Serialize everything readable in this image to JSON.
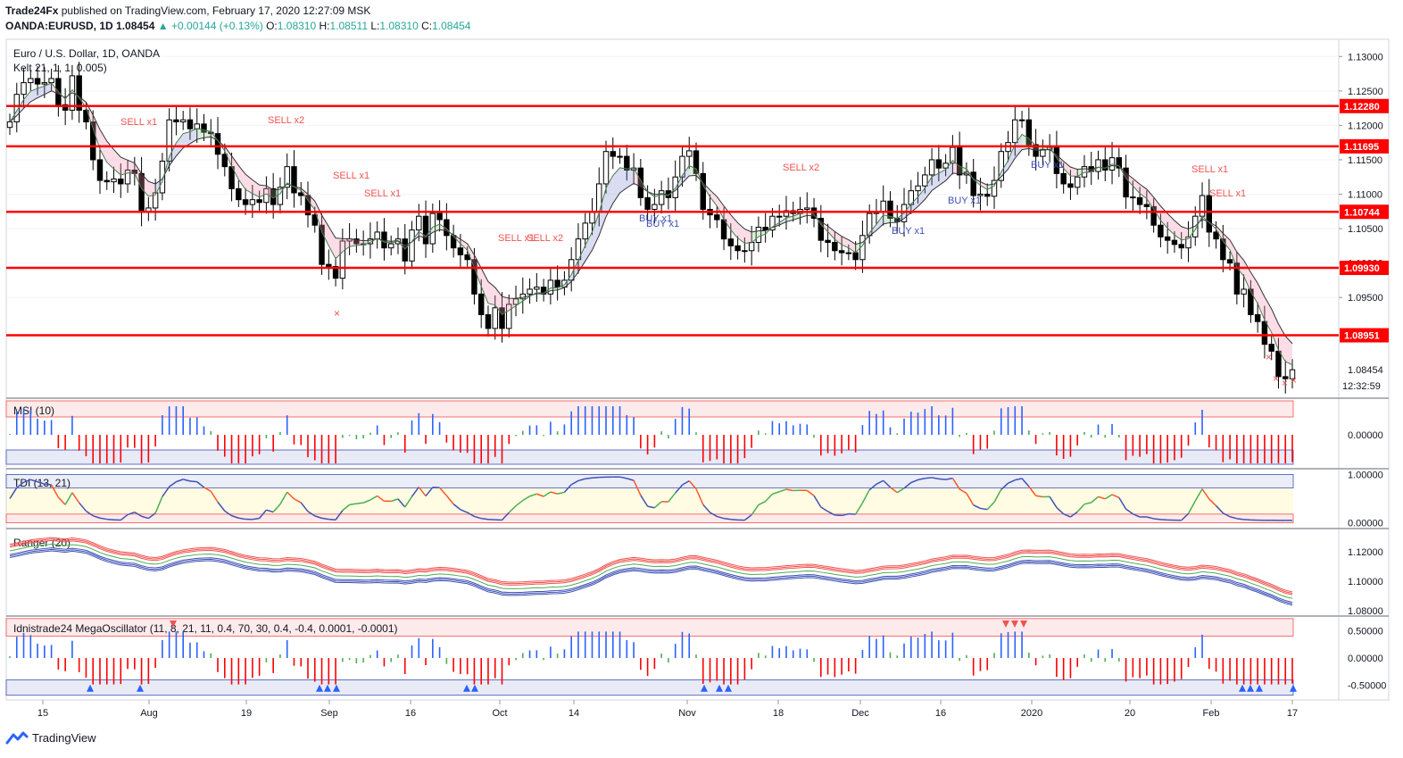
{
  "header": {
    "publisher": "Trade24Fx",
    "published_text": "published on TradingView.com, February 17, 2020 12:27:09 MSK",
    "symbol": "OANDA:EURUSD, 1D",
    "last": "1.08454",
    "change": "+0.00144 (+0.13%)",
    "o_label": "O:",
    "o": "1.08310",
    "h_label": "H:",
    "h": "1.08511",
    "l_label": "L:",
    "l": "1.08310",
    "c_label": "C:",
    "c": "1.08454"
  },
  "legend": {
    "main_title": "Euro / U.S. Dollar, 1D, OANDA",
    "kelt_label": "Kelt 21, 1, 1, 0.005)"
  },
  "colors": {
    "up_candle": "#ffffff",
    "down_candle": "#000000",
    "level_line": "#ff0000",
    "sell_signal": "#ef5350",
    "buy_signal": "#3f51b5",
    "bull_hist": "#2962ff",
    "bear_hist": "#ff0000",
    "neutral_hist": "#4caf50"
  },
  "footer": {
    "brand": "TradingView"
  },
  "chart_data": [
    {
      "type": "candlestick",
      "title": "Euro / U.S. Dollar, 1D, OANDA",
      "ylim": [
        1.0805,
        1.1325
      ],
      "y_ticks": [
        "1.13000",
        "1.12500",
        "1.12000",
        "1.11500",
        "1.11000",
        "1.10500",
        "1.10000",
        "1.09500"
      ],
      "x_tick_labels": [
        "15",
        "Aug",
        "19",
        "Sep",
        "16",
        "Oct",
        "14",
        "Nov",
        "18",
        "Dec",
        "16",
        "2020",
        "20",
        "Feb",
        "17"
      ],
      "levels": [
        {
          "value": 1.1228,
          "label": "1.12280"
        },
        {
          "value": 1.11695,
          "label": "1.11695"
        },
        {
          "value": 1.10744,
          "label": "1.10744"
        },
        {
          "value": 1.0993,
          "label": "1.09930"
        },
        {
          "value": 1.08951,
          "label": "1.08951"
        }
      ],
      "last_price_label": "1.08454",
      "countdown": "12:32:59",
      "close_series": [
        1.1205,
        1.1245,
        1.1262,
        1.1268,
        1.126,
        1.1262,
        1.1268,
        1.123,
        1.1222,
        1.1272,
        1.1222,
        1.1205,
        1.115,
        1.112,
        1.1118,
        1.1122,
        1.1115,
        1.1135,
        1.113,
        1.1075,
        1.108,
        1.1102,
        1.1148,
        1.1208,
        1.1205,
        1.1208,
        1.1195,
        1.1202,
        1.119,
        1.1188,
        1.1158,
        1.114,
        1.1108,
        1.1092,
        1.1085,
        1.1092,
        1.1088,
        1.1108,
        1.1085,
        1.111,
        1.114,
        1.1102,
        1.1098,
        1.107,
        1.1055,
        1.0998,
        1.0995,
        1.0978,
        1.1032,
        1.1035,
        1.1028,
        1.1028,
        1.1035,
        1.1045,
        1.1022,
        1.1028,
        1.1035,
        1.1003,
        1.1048,
        1.1068,
        1.1028,
        1.1072,
        1.1063,
        1.104,
        1.1022,
        1.1012,
        1.1005,
        1.0955,
        1.0925,
        1.0905,
        1.0935,
        1.0905,
        1.094,
        1.0948,
        1.0955,
        1.0962,
        1.0965,
        1.0955,
        1.0975,
        1.0965,
        1.0975,
        1.1005,
        1.1035,
        1.1058,
        1.1075,
        1.1115,
        1.1162,
        1.1155,
        1.1155,
        1.1135,
        1.1138,
        1.1095,
        1.1078,
        1.1085,
        1.1105,
        1.1095,
        1.1125,
        1.1155,
        1.1163,
        1.113,
        1.1078,
        1.107,
        1.1063,
        1.1035,
        1.1025,
        1.1018,
        1.1018,
        1.103,
        1.1052,
        1.1048,
        1.1068,
        1.1068,
        1.1076,
        1.1072,
        1.1078,
        1.108,
        1.1065,
        1.1033,
        1.103,
        1.1018,
        1.1015,
        1.1015,
        1.1005,
        1.104,
        1.1072,
        1.1075,
        1.109,
        1.1065,
        1.106,
        1.1085,
        1.1105,
        1.1112,
        1.1128,
        1.115,
        1.1138,
        1.1145,
        1.1168,
        1.1128,
        1.1132,
        1.1098,
        1.11,
        1.1097,
        1.112,
        1.1162,
        1.1175,
        1.1208,
        1.1208,
        1.1172,
        1.1155,
        1.1165,
        1.1168,
        1.113,
        1.1115,
        1.111,
        1.1125,
        1.114,
        1.1133,
        1.115,
        1.1135,
        1.1153,
        1.1138,
        1.1096,
        1.1095,
        1.1085,
        1.1082,
        1.1055,
        1.1038,
        1.1033,
        1.1027,
        1.1022,
        1.1038,
        1.1068,
        1.1098,
        1.1045,
        1.1035,
        1.1005,
        1.1,
        1.0955,
        1.0962,
        1.0925,
        1.0915,
        1.0882,
        1.0872,
        1.0835,
        1.0832,
        1.0845
      ]
    },
    {
      "type": "bar",
      "title": "MSI (10)",
      "y_ticks": [
        "0.00000"
      ],
      "ylim": [
        -1,
        1
      ]
    },
    {
      "type": "line",
      "title": "TDI (13, 21)",
      "y_ticks": [
        "1.00000",
        "0.00000"
      ],
      "ylim": [
        -0.1,
        1.1
      ]
    },
    {
      "type": "line",
      "title": "Ranger (20)",
      "y_ticks": [
        "1.12000",
        "1.10000",
        "1.08000"
      ],
      "ylim": [
        1.077,
        1.135
      ]
    },
    {
      "type": "bar",
      "title": "Idnistrade24 MegaOscillator (11, 8, 21, 11, 0.4, 70, 30, 0.4, -0.4, 0.0001, -0.0001)",
      "y_ticks": [
        "0.50000",
        "0.00000",
        "-0.50000"
      ],
      "ylim": [
        -0.75,
        0.75
      ]
    }
  ],
  "signals": {
    "sell": [
      "SELL x1",
      "SELL x2",
      "SELL x1",
      "SELL x1",
      "SELL x1",
      "SELL x2",
      "SELL x2",
      "SELL x1",
      "SELL x1"
    ],
    "buy": [
      "BUY x1",
      "BUY x1",
      "BUY x1",
      "BUY x1",
      "BUY x1"
    ]
  }
}
